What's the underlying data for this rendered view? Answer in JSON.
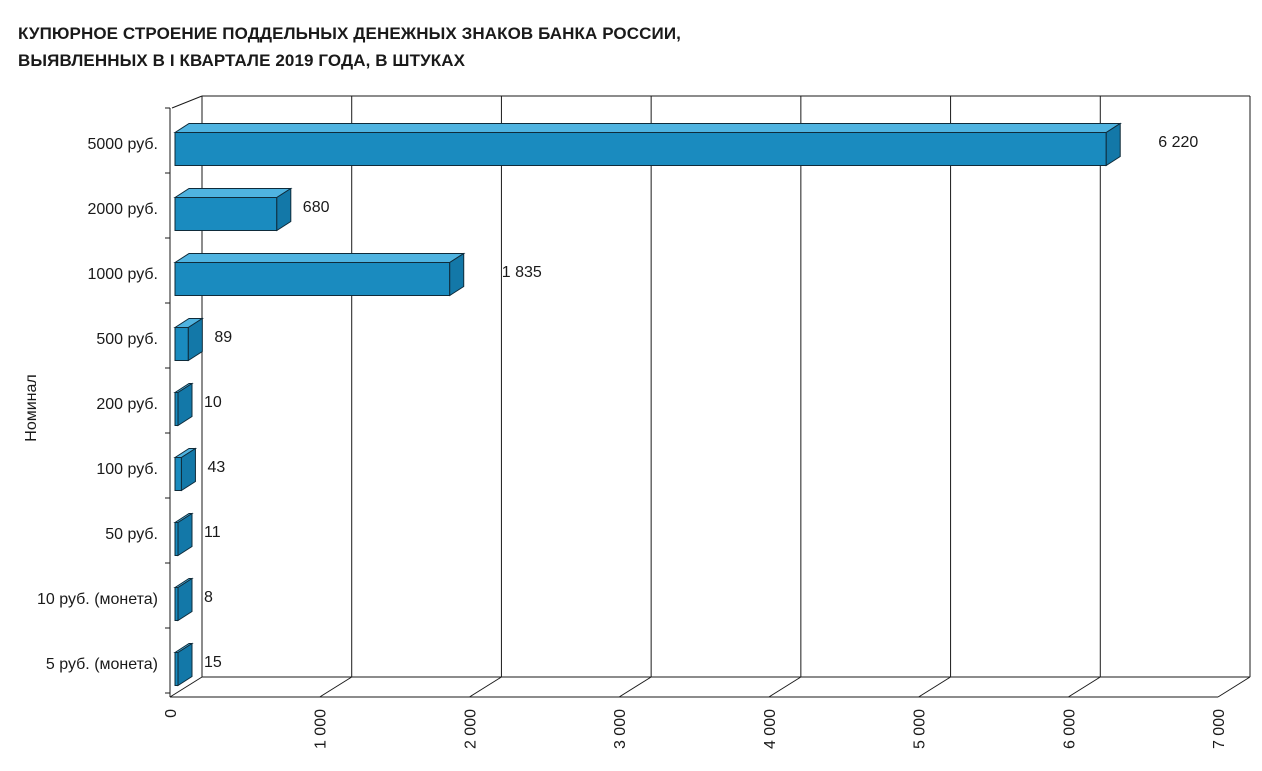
{
  "chart_data": {
    "type": "bar",
    "orientation": "horizontal",
    "title_lines": [
      "КУПЮРНОЕ СТРОЕНИЕ ПОДДЕЛЬНЫХ ДЕНЕЖНЫХ ЗНАКОВ БАНКА РОССИИ,",
      "ВЫЯВЛЕННЫХ В I КВАРТАЛЕ 2019 ГОДА, В ШТУКАХ"
    ],
    "ylabel": "Номинал",
    "xlabel": "",
    "categories": [
      "5000 руб.",
      "2000 руб.",
      "1000 руб.",
      "500 руб.",
      "200 руб.",
      "100 руб.",
      "50 руб.",
      "10 руб. (монета)",
      "5 руб. (монета)"
    ],
    "values": [
      6220,
      680,
      1835,
      89,
      10,
      43,
      11,
      8,
      15
    ],
    "value_labels": [
      "6 220",
      "680",
      "1 835",
      "89",
      "10",
      "43",
      "11",
      "8",
      "15"
    ],
    "xlim": [
      0,
      7000
    ],
    "xticks": [
      0,
      1000,
      2000,
      3000,
      4000,
      5000,
      6000,
      7000
    ],
    "xtick_labels": [
      "0",
      "1 000",
      "2 000",
      "3 000",
      "4 000",
      "5 000",
      "6 000",
      "7 000"
    ],
    "grid": true,
    "style": "3d",
    "bar_color": "#1a8bbf",
    "bar_top_color": "#4fb3e0",
    "bar_side_color": "#1378a8"
  }
}
